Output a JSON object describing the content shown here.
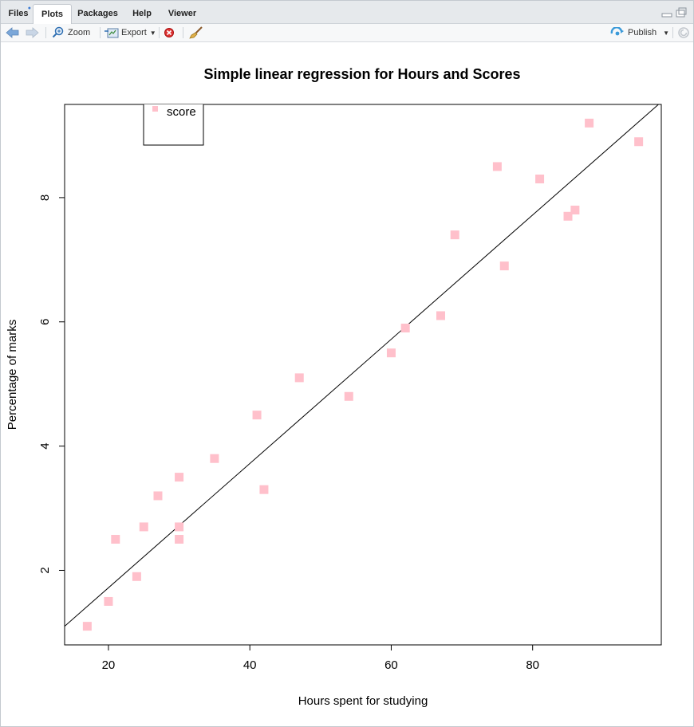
{
  "tabs": [
    {
      "label": "Files",
      "active": false,
      "has_dot": true
    },
    {
      "label": "Plots",
      "active": true,
      "has_dot": false
    },
    {
      "label": "Packages",
      "active": false,
      "has_dot": false
    },
    {
      "label": "Help",
      "active": false,
      "has_dot": false
    },
    {
      "label": "Viewer",
      "active": false,
      "has_dot": false
    }
  ],
  "toolbar": {
    "zoom_label": "Zoom",
    "export_label": "Export",
    "publish_label": "Publish"
  },
  "colors": {
    "point": "#ffc0cb",
    "line": "#000000",
    "tab_bg": "#e6e9ec",
    "accent": "#3b7bd4"
  },
  "chart_data": {
    "type": "scatter",
    "title": "Simple linear regression for Hours and Scores",
    "xlabel": "Hours spent for studying",
    "ylabel": "Percentage of marks",
    "xlim": [
      13.8,
      98.2
    ],
    "ylim": [
      0.8,
      9.5
    ],
    "xticks": [
      20,
      40,
      60,
      80
    ],
    "yticks": [
      2,
      4,
      6,
      8
    ],
    "legend": {
      "position": "top-left",
      "entries": [
        "score"
      ]
    },
    "series": [
      {
        "name": "score",
        "points": [
          {
            "x": 17,
            "y": 1.1
          },
          {
            "x": 20,
            "y": 1.5
          },
          {
            "x": 21,
            "y": 2.5
          },
          {
            "x": 24,
            "y": 1.9
          },
          {
            "x": 25,
            "y": 2.7
          },
          {
            "x": 27,
            "y": 3.2
          },
          {
            "x": 30,
            "y": 3.5
          },
          {
            "x": 30,
            "y": 2.7
          },
          {
            "x": 30,
            "y": 2.5
          },
          {
            "x": 35,
            "y": 3.8
          },
          {
            "x": 41,
            "y": 4.5
          },
          {
            "x": 42,
            "y": 3.3
          },
          {
            "x": 47,
            "y": 5.1
          },
          {
            "x": 54,
            "y": 4.8
          },
          {
            "x": 60,
            "y": 5.5
          },
          {
            "x": 62,
            "y": 5.9
          },
          {
            "x": 67,
            "y": 6.1
          },
          {
            "x": 69,
            "y": 7.4
          },
          {
            "x": 75,
            "y": 8.5
          },
          {
            "x": 76,
            "y": 6.9
          },
          {
            "x": 81,
            "y": 8.3
          },
          {
            "x": 85,
            "y": 7.7
          },
          {
            "x": 86,
            "y": 7.8
          },
          {
            "x": 88,
            "y": 9.2
          },
          {
            "x": 95,
            "y": 8.9
          }
        ]
      }
    ],
    "regression_line": {
      "intercept": -0.28,
      "slope": 0.1
    }
  }
}
